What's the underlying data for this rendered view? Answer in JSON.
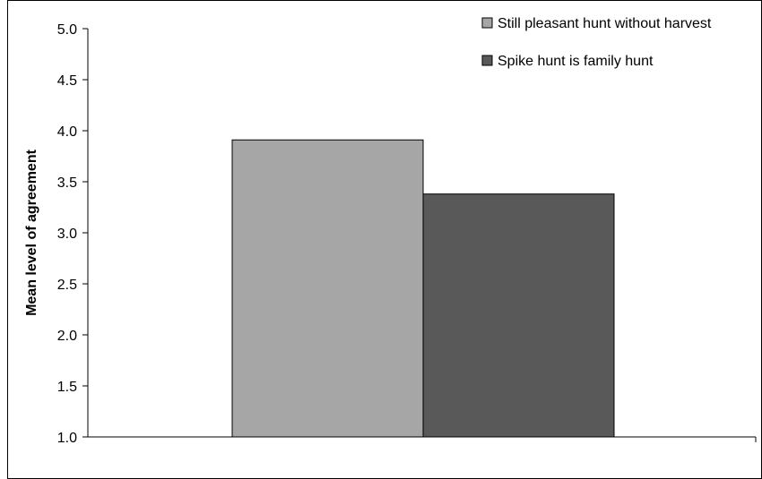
{
  "chart_data": {
    "type": "bar",
    "ylabel": "Mean level of agreement",
    "ylim": [
      1.0,
      5.0
    ],
    "yticks": [
      "1.0",
      "1.5",
      "2.0",
      "2.5",
      "3.0",
      "3.5",
      "4.0",
      "4.5",
      "5.0"
    ],
    "grid": false,
    "legend_position": "top-right",
    "series": [
      {
        "name": "Still pleasant hunt without harvest",
        "values": [
          3.91
        ],
        "color": "#a6a6a6"
      },
      {
        "name": "Spike hunt is family hunt",
        "values": [
          3.38
        ],
        "color": "#595959"
      }
    ]
  }
}
